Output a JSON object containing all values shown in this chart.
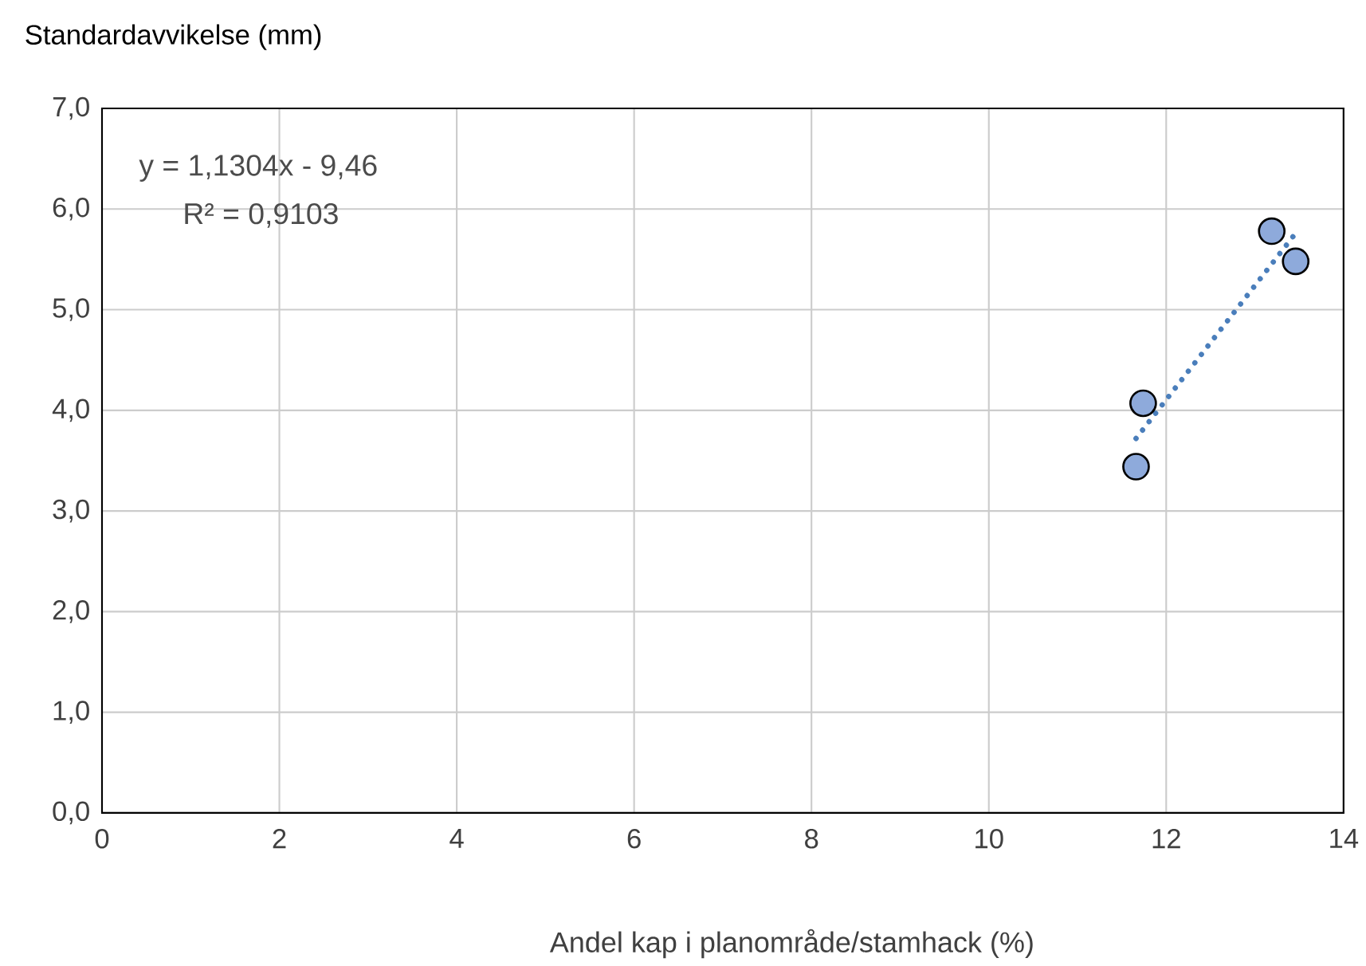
{
  "chart_data": {
    "type": "scatter",
    "xlabel": "Andel kap i planområde/stamhack (%)",
    "ylabel": "Standardavvikelse (mm)",
    "xlim": [
      0,
      14
    ],
    "xticks": [
      0,
      2,
      4,
      6,
      8,
      10,
      12,
      14
    ],
    "ylim": [
      0,
      7
    ],
    "yticks": [
      {
        "value": 0,
        "label": "0,0"
      },
      {
        "value": 1,
        "label": "1,0"
      },
      {
        "value": 2,
        "label": "2,0"
      },
      {
        "value": 3,
        "label": "3,0"
      },
      {
        "value": 4,
        "label": "4,0"
      },
      {
        "value": 5,
        "label": "5,0"
      },
      {
        "value": 6,
        "label": "6,0"
      },
      {
        "value": 7,
        "label": "7,0"
      }
    ],
    "grid": true,
    "series": [
      {
        "color": "#8eaadb",
        "marker": "circle",
        "x": [
          11.66,
          11.74,
          13.19,
          13.46
        ],
        "values": [
          3.44,
          4.07,
          5.78,
          5.48
        ]
      },
      {
        "type": "line",
        "color": "#4a7ebb",
        "marker": "none",
        "line_style": "dotted",
        "x": [
          11.66,
          13.46
        ],
        "values": [
          3.72,
          5.76
        ]
      }
    ],
    "annotations": [
      "y = 1,1304x - 9,46",
      "R² = 0,9103"
    ]
  }
}
